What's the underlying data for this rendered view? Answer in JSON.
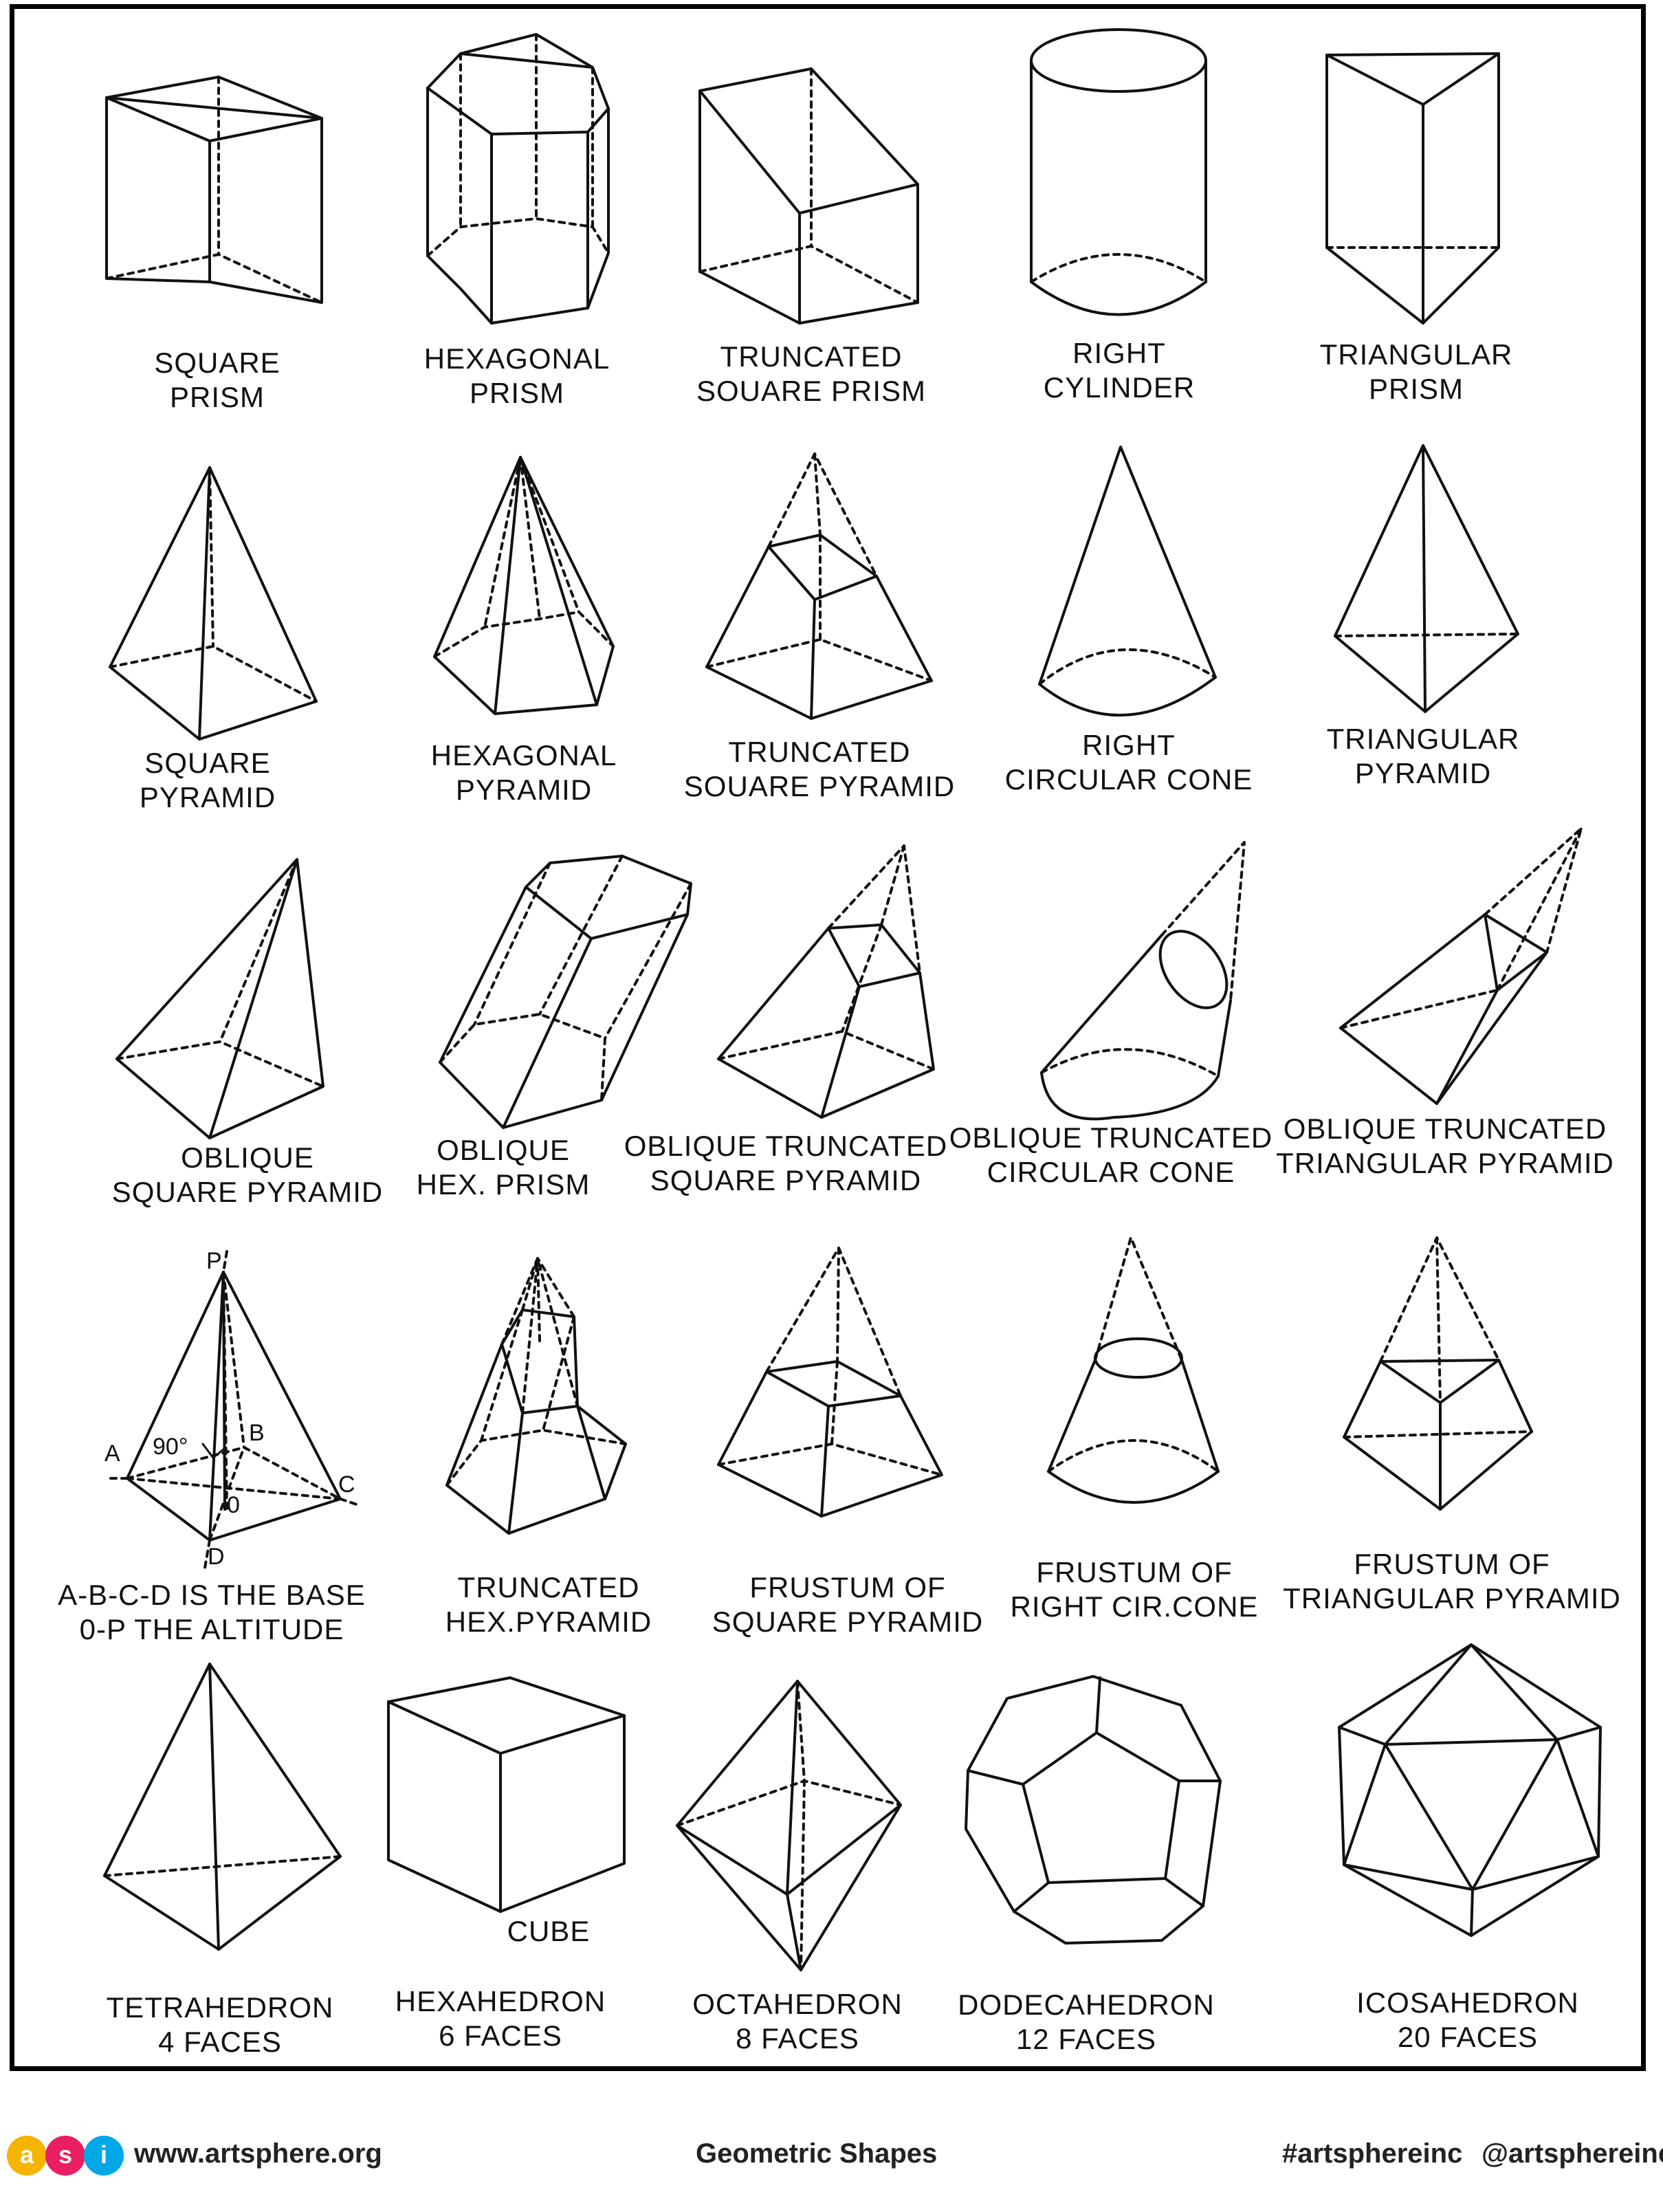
{
  "shapes": [
    {
      "id": "square-prism",
      "lines": [
        "SQUARE",
        "PRISM"
      ]
    },
    {
      "id": "hexagonal-prism",
      "lines": [
        "HEXAGONAL",
        "PRISM"
      ]
    },
    {
      "id": "truncated-square-prism",
      "lines": [
        "TRUNCATED",
        "SOUARE PRISM"
      ]
    },
    {
      "id": "right-cylinder",
      "lines": [
        "RIGHT",
        "CYLINDER"
      ]
    },
    {
      "id": "triangular-prism",
      "lines": [
        "TRIANGULAR",
        "PRISM"
      ]
    },
    {
      "id": "square-pyramid",
      "lines": [
        "SQUARE",
        "PYRAMID"
      ]
    },
    {
      "id": "hexagonal-pyramid",
      "lines": [
        "HEXAGONAL",
        "PYRAMID"
      ]
    },
    {
      "id": "truncated-square-pyramid",
      "lines": [
        "TRUNCATED",
        "SOUARE PYRAMID"
      ]
    },
    {
      "id": "right-circular-cone",
      "lines": [
        "RIGHT",
        "CIRCULAR CONE"
      ]
    },
    {
      "id": "triangular-pyramid",
      "lines": [
        "TRIANGULAR",
        "PYRAMID"
      ]
    },
    {
      "id": "oblique-square-pyramid",
      "lines": [
        "OBLIQUE",
        "SQUARE PYRAMID"
      ]
    },
    {
      "id": "oblique-hex-prism",
      "lines": [
        "OBLIQUE",
        "HEX. PRISM"
      ]
    },
    {
      "id": "oblique-truncated-square-pyramid",
      "lines": [
        "OBLIQUE TRUNCATED",
        "SQUARE PYRAMID"
      ]
    },
    {
      "id": "oblique-truncated-circular-cone",
      "lines": [
        "OBLIQUE TRUNCATED",
        "CIRCULAR CONE"
      ]
    },
    {
      "id": "oblique-truncated-triangular-pyramid",
      "lines": [
        "OBLIQUE TRUNCATED",
        "TRIANGULAR PYRAMID"
      ]
    },
    {
      "id": "base-altitude",
      "lines": [
        "A-B-C-D IS THE BASE",
        "0-P THE ALTITUDE"
      ]
    },
    {
      "id": "truncated-hex-pyramid",
      "lines": [
        "TRUNCATED",
        "HEX.PYRAMID"
      ]
    },
    {
      "id": "frustum-square-pyramid",
      "lines": [
        "FRUSTUM OF",
        "SQUARE PYRAMID"
      ]
    },
    {
      "id": "frustum-right-cone",
      "lines": [
        "FRUSTUM OF",
        "RIGHT CIR.CONE"
      ]
    },
    {
      "id": "frustum-triangular-pyramid",
      "lines": [
        "FRUSTUM OF",
        "TRIANGULAR PYRAMID"
      ]
    },
    {
      "id": "tetrahedron",
      "lines": [
        "TETRAHEDRON",
        "4 FACES"
      ]
    },
    {
      "id": "hexahedron",
      "lines": [
        "HEXAHEDRON",
        "6 FACES"
      ]
    },
    {
      "id": "octahedron",
      "lines": [
        "OCTAHEDRON",
        "8 FACES"
      ]
    },
    {
      "id": "dodecahedron",
      "lines": [
        "DODECAHEDRON",
        "12 FACES"
      ]
    },
    {
      "id": "icosahedron",
      "lines": [
        "ICOSAHEDRON",
        "20 FACES"
      ]
    }
  ],
  "cube_label": "CUBE",
  "points": {
    "p": "P",
    "a": "A",
    "b": "B",
    "c": "C",
    "d": "D",
    "o": "0",
    "angle": "90°"
  },
  "footer": {
    "logo_letters": [
      "a",
      "s",
      "i"
    ],
    "logo_colors": [
      "#f4b400",
      "#e91e63",
      "#00a8e8"
    ],
    "website": "www.artsphere.org",
    "title": "Geometric Shapes",
    "hashtag": "#artsphereinc",
    "handle": "@artsphereinc"
  }
}
